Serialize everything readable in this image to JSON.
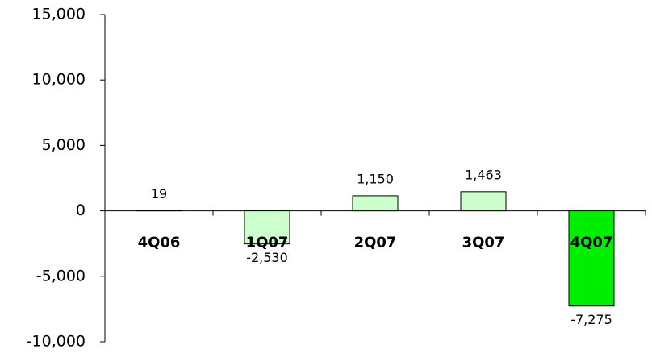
{
  "chart_data": {
    "type": "bar",
    "categories": [
      "4Q06",
      "1Q07",
      "2Q07",
      "3Q07",
      "4Q07"
    ],
    "values": [
      19,
      -2530,
      1150,
      1463,
      -7275
    ],
    "value_labels": [
      "19",
      "-2,530",
      "1,150",
      "1,463",
      "-7,275"
    ],
    "colors": [
      "#ccffcc",
      "#ccffcc",
      "#ccffcc",
      "#ccffcc",
      "#00ee00"
    ],
    "ylim": [
      -10000,
      15000
    ],
    "yticks": [
      {
        "value": -10000,
        "label": "-10,000"
      },
      {
        "value": -5000,
        "label": "-5,000"
      },
      0,
      {
        "value": 5000,
        "label": "5,000"
      },
      {
        "value": 10000,
        "label": "10,000"
      },
      {
        "value": 15000,
        "label": "15,000"
      }
    ],
    "grid": false
  }
}
